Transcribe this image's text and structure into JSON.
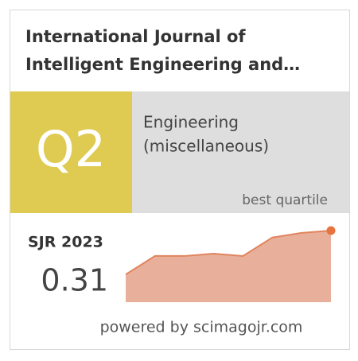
{
  "header": {
    "title_lines": [
      "International Journal of",
      "Intelligent Engineering and…"
    ]
  },
  "quartile": {
    "label": "Q2",
    "category_lines": [
      "Engineering",
      "(miscellaneous)"
    ],
    "caption": "best quartile"
  },
  "indicator": {
    "label": "SJR 2023",
    "value": "0.31"
  },
  "sparkline": {
    "values": [
      0.12,
      0.2,
      0.2,
      0.21,
      0.2,
      0.28,
      0.3,
      0.31
    ],
    "color": "#e8b09b",
    "line_color": "#e0845e",
    "dot_color": "#e8733f"
  },
  "footer": {
    "text": "powered by scimagojr.com"
  }
}
